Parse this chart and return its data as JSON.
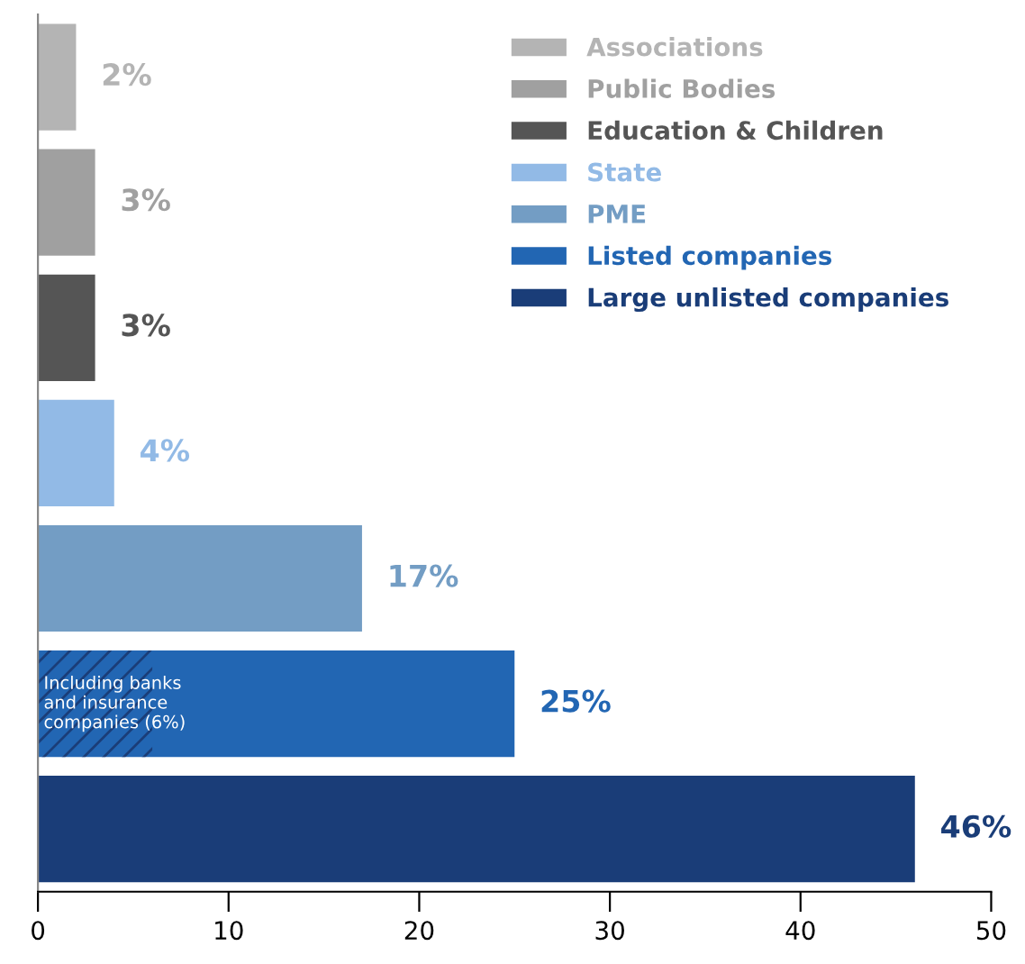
{
  "chart_data": {
    "type": "bar",
    "orientation": "horizontal",
    "categories": [
      null,
      null,
      null,
      null,
      null,
      null,
      null
    ],
    "series": [
      {
        "name": "Associations",
        "color": "#b4b4b4",
        "values": [
          2,
          null,
          null,
          null,
          null,
          null,
          null
        ],
        "value_labels": [
          "2%",
          null,
          null,
          null,
          null,
          null,
          null
        ]
      },
      {
        "name": "Public Bodies",
        "color": "#a0a0a0",
        "values": [
          null,
          3,
          null,
          null,
          null,
          null,
          null
        ],
        "value_labels": [
          null,
          "3%",
          null,
          null,
          null,
          null,
          null
        ]
      },
      {
        "name": "Education & Children",
        "color": "#555555",
        "values": [
          null,
          null,
          3,
          null,
          null,
          null,
          null
        ],
        "value_labels": [
          null,
          null,
          "3%",
          null,
          null,
          null,
          null
        ]
      },
      {
        "name": "State",
        "color": "#92bae6",
        "values": [
          null,
          null,
          null,
          4,
          null,
          null,
          null
        ],
        "value_labels": [
          null,
          null,
          null,
          "4%",
          null,
          null,
          null
        ]
      },
      {
        "name": "PME",
        "color": "#739dc4",
        "values": [
          null,
          null,
          null,
          null,
          17,
          null,
          null
        ],
        "value_labels": [
          null,
          null,
          null,
          null,
          "17%",
          null,
          null
        ]
      },
      {
        "name": "Listed companies",
        "color": "#2266b3",
        "values": [
          null,
          null,
          null,
          null,
          null,
          25,
          null
        ],
        "value_labels": [
          null,
          null,
          null,
          null,
          null,
          "25%",
          null
        ]
      },
      {
        "name": "Large unlisted companies",
        "color": "#1a3d78",
        "values": [
          null,
          null,
          null,
          null,
          null,
          null,
          46
        ],
        "value_labels": [
          null,
          null,
          null,
          null,
          null,
          null,
          "46%"
        ]
      },
      {
        "color": "#1a3d78",
        "values": [
          null,
          null,
          null,
          null,
          null,
          6,
          null
        ]
      }
    ],
    "annotations": [
      "Including banks\nand insurance\ncompanies (6%)"
    ],
    "xlim": [
      0,
      50
    ],
    "xticks": [
      0,
      10,
      20,
      30,
      40,
      50
    ],
    "grid": false,
    "legend": "top right",
    "tick_labels": "x"
  }
}
